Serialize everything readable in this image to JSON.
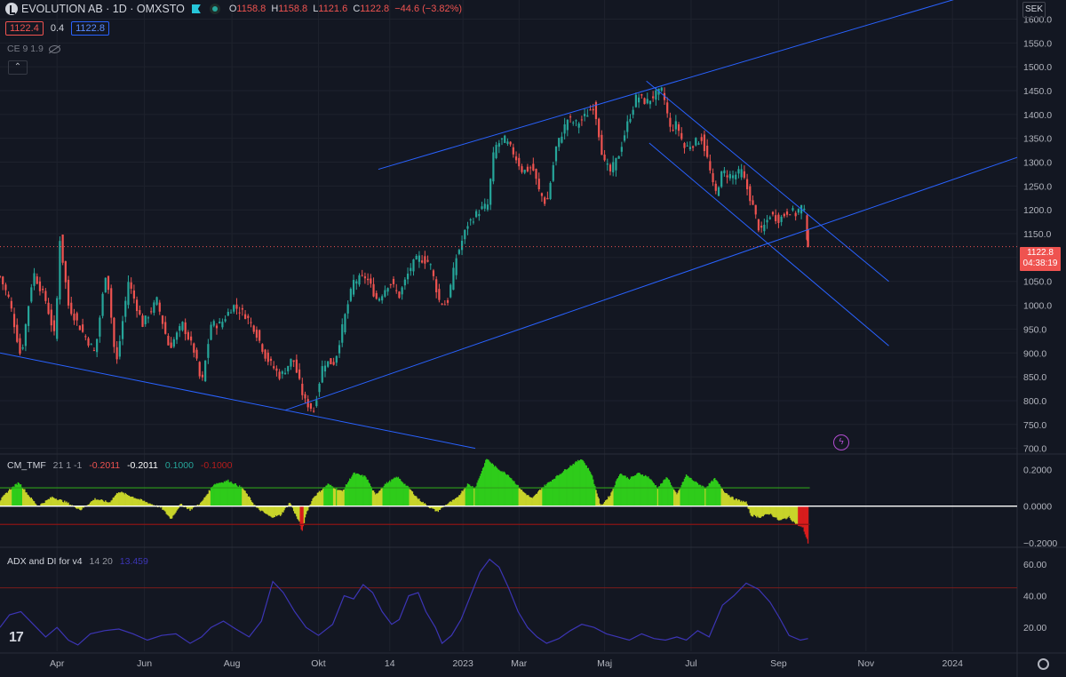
{
  "header": {
    "symbol": "EVOLUTION AB · 1D · OMXSTO",
    "open_label": "O",
    "open": "1158.8",
    "high_label": "H",
    "high": "1158.8",
    "low_label": "L",
    "low": "1121.6",
    "close_label": "C",
    "close": "1122.8",
    "change": "−44.6 (−3.82%)",
    "bid": "1122.4",
    "spread": "0.4",
    "ask": "1122.8",
    "indicator_line": "CE 9 1.9"
  },
  "currency": "SEK",
  "last_price_tag": {
    "price": "1122.8",
    "countdown": "04:38:19"
  },
  "tmf_title": {
    "name": "CM_TMF",
    "params": "21 1 -1",
    "v1": "-0.2011",
    "v2": "-0.2011",
    "v3": "0.1000",
    "v4": "-0.1000"
  },
  "adx_title": {
    "name": "ADX and DI for v4",
    "params": "14 20",
    "value": "13.459"
  },
  "colors": {
    "bg": "#131722",
    "up": "#26a69a",
    "down": "#ef5350",
    "line": "#2962ff",
    "tmf_pos": "#2ecc1a",
    "tmf_pos_weak": "#c8d42a",
    "tmf_neg": "#c8d42a",
    "tmf_neg_strong": "#d81c1c",
    "adx": "#3c35b5"
  },
  "logo_text": "17",
  "chart_data": [
    {
      "type": "candlestick",
      "title": "EVOLUTION AB · 1D · OMXSTO",
      "price_axis_ticks": [
        700,
        750,
        800,
        850,
        900,
        950,
        1000,
        1050,
        1100,
        1150,
        1200,
        1250,
        1300,
        1350,
        1400,
        1450,
        1500,
        1550,
        1600
      ],
      "price_axis_labels": [
        "700.0",
        "750.0",
        "800.0",
        "850.0",
        "900.0",
        "950.0",
        "1000.0",
        "1050.0",
        "1100.0",
        "1150.0",
        "1200.0",
        "1250.0",
        "1300.0",
        "1350.0",
        "1400.0",
        "1450.0",
        "1500.0",
        "1550.0",
        "1600.0"
      ],
      "ylim": [
        690,
        1640
      ],
      "time_axis_labels": [
        "Apr",
        "Jun",
        "Aug",
        "Okt",
        "14",
        "2023",
        "Mar",
        "Maj",
        "Jul",
        "Sep",
        "Nov",
        "2024"
      ],
      "time_axis_days": [
        60,
        152,
        244,
        335,
        410,
        487,
        546,
        636,
        727,
        819,
        911,
        1002
      ],
      "xlim_days": [
        0,
        1070
      ],
      "last_price": 1122.8,
      "close_path": [
        [
          0,
          1060
        ],
        [
          10,
          1010
        ],
        [
          22,
          890
        ],
        [
          35,
          1070
        ],
        [
          48,
          1010
        ],
        [
          58,
          930
        ],
        [
          63,
          1140
        ],
        [
          72,
          1000
        ],
        [
          85,
          950
        ],
        [
          100,
          900
        ],
        [
          112,
          1080
        ],
        [
          122,
          870
        ],
        [
          135,
          1050
        ],
        [
          150,
          960
        ],
        [
          165,
          1010
        ],
        [
          178,
          910
        ],
        [
          192,
          960
        ],
        [
          205,
          900
        ],
        [
          212,
          830
        ],
        [
          222,
          960
        ],
        [
          232,
          960
        ],
        [
          245,
          1000
        ],
        [
          258,
          980
        ],
        [
          268,
          950
        ],
        [
          280,
          890
        ],
        [
          295,
          850
        ],
        [
          308,
          890
        ],
        [
          320,
          800
        ],
        [
          330,
          780
        ],
        [
          340,
          880
        ],
        [
          352,
          880
        ],
        [
          362,
          970
        ],
        [
          372,
          1050
        ],
        [
          385,
          1060
        ],
        [
          397,
          1010
        ],
        [
          410,
          1050
        ],
        [
          420,
          1020
        ],
        [
          432,
          1080
        ],
        [
          440,
          1100
        ],
        [
          452,
          1090
        ],
        [
          462,
          1010
        ],
        [
          470,
          1000
        ],
        [
          480,
          1100
        ],
        [
          492,
          1170
        ],
        [
          505,
          1200
        ],
        [
          513,
          1210
        ],
        [
          520,
          1330
        ],
        [
          530,
          1350
        ],
        [
          540,
          1320
        ],
        [
          550,
          1280
        ],
        [
          560,
          1290
        ],
        [
          567,
          1240
        ],
        [
          575,
          1210
        ],
        [
          585,
          1330
        ],
        [
          597,
          1390
        ],
        [
          607,
          1380
        ],
        [
          615,
          1395
        ],
        [
          625,
          1420
        ],
        [
          635,
          1300
        ],
        [
          642,
          1280
        ],
        [
          650,
          1310
        ],
        [
          660,
          1380
        ],
        [
          670,
          1440
        ],
        [
          680,
          1425
        ],
        [
          688,
          1440
        ],
        [
          697,
          1450
        ],
        [
          705,
          1370
        ],
        [
          712,
          1380
        ],
        [
          720,
          1330
        ],
        [
          730,
          1340
        ],
        [
          738,
          1350
        ],
        [
          745,
          1300
        ],
        [
          752,
          1230
        ],
        [
          760,
          1280
        ],
        [
          770,
          1270
        ],
        [
          780,
          1280
        ],
        [
          790,
          1220
        ],
        [
          800,
          1150
        ],
        [
          810,
          1190
        ],
        [
          820,
          1180
        ],
        [
          830,
          1200
        ],
        [
          838,
          1190
        ],
        [
          842,
          1210
        ],
        [
          847,
          1190
        ],
        [
          850,
          1123
        ]
      ],
      "trend_lines": [
        {
          "from": [
            0,
            900
          ],
          "to": [
            500,
            700
          ]
        },
        {
          "from": [
            300,
            780
          ],
          "to": [
            1070,
            1310
          ]
        },
        {
          "from": [
            398,
            1285
          ],
          "to": [
            1070,
            1680
          ]
        },
        {
          "from": [
            680,
            1470
          ],
          "to": [
            935,
            1050
          ]
        },
        {
          "from": [
            683,
            1340
          ],
          "to": [
            935,
            915
          ]
        }
      ]
    },
    {
      "type": "area",
      "title": "CM_TMF",
      "ylim": [
        -0.22,
        0.28
      ],
      "axis_ticks": [
        0.2,
        0.0,
        -0.2
      ],
      "axis_labels": [
        "0.2000",
        "0.0000",
        "−0.2000"
      ],
      "levels": [
        0.1,
        0.0,
        -0.1
      ],
      "path": [
        [
          0,
          0.03
        ],
        [
          10,
          0.09
        ],
        [
          20,
          0.13
        ],
        [
          30,
          0.06
        ],
        [
          40,
          0.0
        ],
        [
          55,
          0.05
        ],
        [
          70,
          0.02
        ],
        [
          85,
          -0.02
        ],
        [
          100,
          0.04
        ],
        [
          115,
          0.02
        ],
        [
          125,
          0.08
        ],
        [
          140,
          0.05
        ],
        [
          155,
          0.02
        ],
        [
          170,
          -0.01
        ],
        [
          180,
          -0.07
        ],
        [
          190,
          0.01
        ],
        [
          200,
          -0.02
        ],
        [
          212,
          0.02
        ],
        [
          225,
          0.12
        ],
        [
          240,
          0.14
        ],
        [
          255,
          0.1
        ],
        [
          270,
          -0.01
        ],
        [
          285,
          -0.06
        ],
        [
          295,
          -0.05
        ],
        [
          305,
          0.02
        ],
        [
          315,
          -0.09
        ],
        [
          318,
          -0.14
        ],
        [
          322,
          -0.04
        ],
        [
          330,
          0.05
        ],
        [
          345,
          0.12
        ],
        [
          360,
          0.08
        ],
        [
          372,
          0.18
        ],
        [
          385,
          0.16
        ],
        [
          395,
          0.06
        ],
        [
          405,
          0.12
        ],
        [
          418,
          0.16
        ],
        [
          430,
          0.1
        ],
        [
          440,
          0.04
        ],
        [
          450,
          0.0
        ],
        [
          460,
          -0.03
        ],
        [
          470,
          0.01
        ],
        [
          480,
          0.04
        ],
        [
          492,
          0.12
        ],
        [
          500,
          0.1
        ],
        [
          512,
          0.26
        ],
        [
          522,
          0.21
        ],
        [
          535,
          0.17
        ],
        [
          550,
          0.08
        ],
        [
          560,
          0.04
        ],
        [
          570,
          0.1
        ],
        [
          580,
          0.14
        ],
        [
          590,
          0.18
        ],
        [
          600,
          0.22
        ],
        [
          612,
          0.26
        ],
        [
          622,
          0.18
        ],
        [
          632,
          0.0
        ],
        [
          642,
          0.06
        ],
        [
          652,
          0.18
        ],
        [
          662,
          0.15
        ],
        [
          672,
          0.18
        ],
        [
          682,
          0.16
        ],
        [
          692,
          0.1
        ],
        [
          702,
          0.16
        ],
        [
          712,
          0.06
        ],
        [
          722,
          0.17
        ],
        [
          732,
          0.13
        ],
        [
          742,
          0.1
        ],
        [
          752,
          0.15
        ],
        [
          762,
          0.08
        ],
        [
          772,
          0.04
        ],
        [
          785,
          0.02
        ],
        [
          790,
          -0.05
        ],
        [
          800,
          -0.06
        ],
        [
          810,
          -0.04
        ],
        [
          820,
          -0.08
        ],
        [
          830,
          -0.06
        ],
        [
          838,
          -0.1
        ],
        [
          845,
          -0.12
        ],
        [
          850,
          -0.2
        ]
      ]
    },
    {
      "type": "line",
      "title": "ADX and DI for v4",
      "ylim": [
        5,
        70
      ],
      "axis_ticks": [
        60,
        40,
        20
      ],
      "axis_labels": [
        "60.00",
        "40.00",
        "20.00"
      ],
      "reference_level": 45,
      "path": [
        [
          0,
          20
        ],
        [
          10,
          28
        ],
        [
          22,
          30
        ],
        [
          35,
          22
        ],
        [
          48,
          14
        ],
        [
          60,
          20
        ],
        [
          72,
          12
        ],
        [
          82,
          9
        ],
        [
          95,
          16
        ],
        [
          110,
          18
        ],
        [
          125,
          19
        ],
        [
          140,
          16
        ],
        [
          155,
          12
        ],
        [
          170,
          15
        ],
        [
          185,
          16
        ],
        [
          200,
          10
        ],
        [
          212,
          14
        ],
        [
          222,
          20
        ],
        [
          235,
          24
        ],
        [
          248,
          19
        ],
        [
          262,
          14
        ],
        [
          275,
          24
        ],
        [
          287,
          49
        ],
        [
          298,
          42
        ],
        [
          310,
          30
        ],
        [
          322,
          20
        ],
        [
          335,
          15
        ],
        [
          350,
          22
        ],
        [
          362,
          40
        ],
        [
          372,
          38
        ],
        [
          382,
          47
        ],
        [
          392,
          42
        ],
        [
          402,
          30
        ],
        [
          412,
          22
        ],
        [
          420,
          25
        ],
        [
          430,
          40
        ],
        [
          440,
          42
        ],
        [
          448,
          30
        ],
        [
          458,
          20
        ],
        [
          465,
          10
        ],
        [
          475,
          15
        ],
        [
          485,
          25
        ],
        [
          495,
          40
        ],
        [
          505,
          55
        ],
        [
          515,
          63
        ],
        [
          525,
          58
        ],
        [
          535,
          45
        ],
        [
          545,
          30
        ],
        [
          555,
          20
        ],
        [
          565,
          14
        ],
        [
          575,
          10
        ],
        [
          588,
          13
        ],
        [
          600,
          18
        ],
        [
          612,
          22
        ],
        [
          625,
          20
        ],
        [
          638,
          16
        ],
        [
          650,
          14
        ],
        [
          662,
          12
        ],
        [
          675,
          16
        ],
        [
          688,
          13
        ],
        [
          700,
          12
        ],
        [
          712,
          14
        ],
        [
          722,
          12
        ],
        [
          734,
          18
        ],
        [
          746,
          14
        ],
        [
          760,
          34
        ],
        [
          772,
          40
        ],
        [
          785,
          48
        ],
        [
          798,
          44
        ],
        [
          810,
          36
        ],
        [
          820,
          26
        ],
        [
          830,
          15
        ],
        [
          842,
          12
        ],
        [
          850,
          13
        ]
      ]
    }
  ]
}
